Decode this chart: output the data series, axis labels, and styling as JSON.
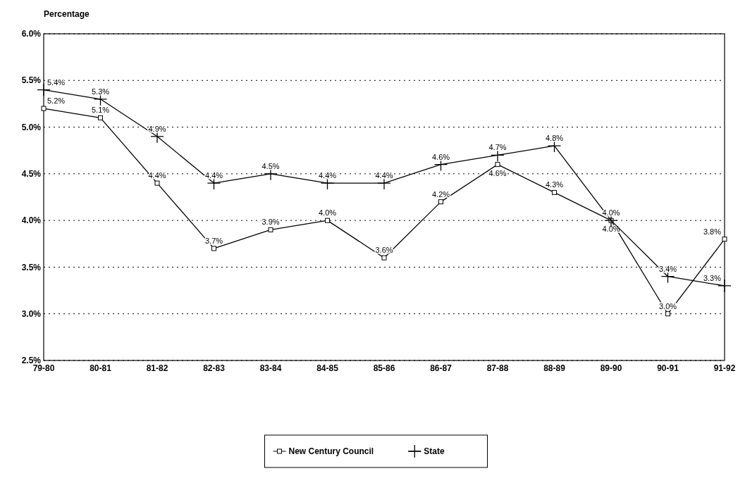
{
  "chart_data": {
    "type": "line",
    "ylabel": "Percentage",
    "categories": [
      "79-80",
      "80-81",
      "81-82",
      "82-83",
      "83-84",
      "84-85",
      "85-86",
      "86-87",
      "87-88",
      "88-89",
      "89-90",
      "90-91",
      "91-92"
    ],
    "series": [
      {
        "name": "New Century Council",
        "color": "#000000",
        "marker": "square",
        "values": [
          5.2,
          5.1,
          4.4,
          3.7,
          3.9,
          4.0,
          3.6,
          4.2,
          4.6,
          4.3,
          4.0,
          3.0,
          3.8
        ],
        "value_labels": [
          "5.2%",
          "5.1%",
          "4.4%",
          "3.7%",
          "3.9%",
          "4.0%",
          "3.6%",
          "4.2%",
          "4.6%",
          "4.3%",
          "4.0%",
          "3.0%",
          "3.8%"
        ]
      },
      {
        "name": "State",
        "color": "#000000",
        "marker": "cross",
        "values": [
          5.4,
          5.3,
          4.9,
          4.4,
          4.5,
          4.4,
          4.4,
          4.6,
          4.7,
          4.8,
          4.0,
          3.4,
          3.3
        ],
        "value_labels": [
          "5.4%",
          "5.3%",
          "4.9%",
          "4.4%",
          "4.5%",
          "4.4%",
          "4.4%",
          "4.6%",
          "4.7%",
          "4.8%",
          "4.0%",
          "3.4%",
          "3.3%"
        ]
      }
    ],
    "ylim": [
      2.5,
      6.0
    ],
    "yticks": [
      {
        "value": 2.5,
        "label": "2.5%"
      },
      {
        "value": 3.0,
        "label": "3.0%"
      },
      {
        "value": 3.5,
        "label": "3.5%"
      },
      {
        "value": 4.0,
        "label": "4.0%"
      },
      {
        "value": 4.5,
        "label": "4.5%"
      },
      {
        "value": 5.0,
        "label": "5.0%"
      },
      {
        "value": 5.5,
        "label": "5.5%"
      },
      {
        "value": 6.0,
        "label": "6.0%"
      }
    ],
    "grid": "y",
    "legend": "bottom",
    "line_style": "solid"
  }
}
